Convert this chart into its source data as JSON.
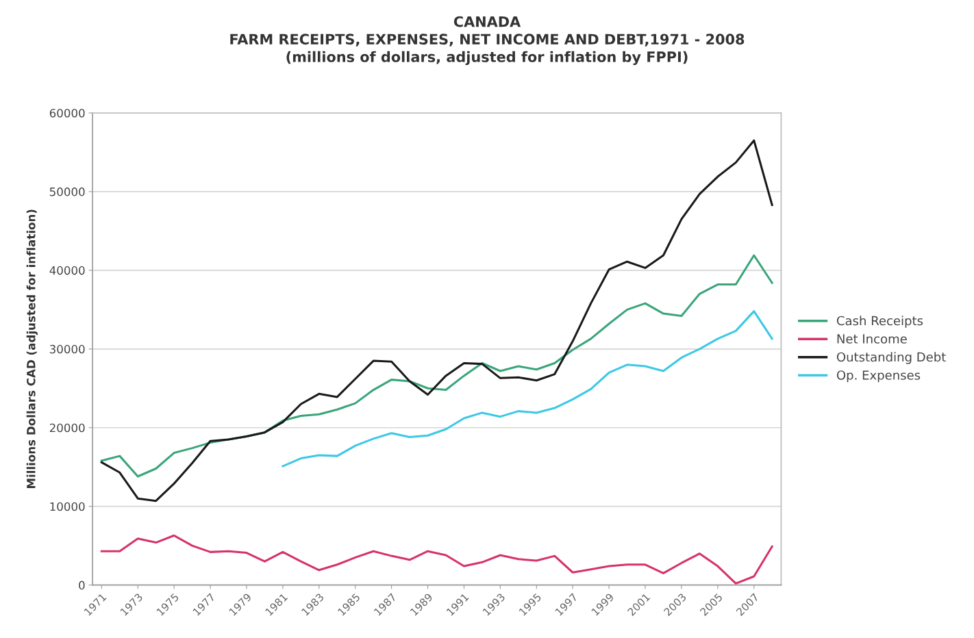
{
  "chart_data": {
    "type": "line",
    "title": "CANADA\nFARM RECEIPTS, EXPENSES, NET INCOME AND DEBT,1971 - 2008\n(millions of dollars, adjusted for inflation by FPPI)",
    "ylabel": "Millions Dollars CAD (adjusted for inflation)",
    "categories": [
      "1971",
      null,
      "1973",
      null,
      "1975",
      null,
      "1977",
      null,
      "1979",
      null,
      "1981",
      null,
      "1983",
      null,
      "1985",
      null,
      "1987",
      null,
      "1989",
      null,
      "1991",
      null,
      "1993",
      null,
      "1995",
      null,
      "1997",
      null,
      "1999",
      null,
      "2001",
      null,
      "2003",
      null,
      "2005",
      null,
      "2007",
      null
    ],
    "series": [
      {
        "name": "Cash Receipts",
        "color": "#3aa57a",
        "values": [
          15800,
          16400,
          13800,
          14800,
          16800,
          17400,
          18100,
          18500,
          18900,
          19400,
          20900,
          21500,
          21700,
          22300,
          23100,
          24800,
          26100,
          25900,
          25000,
          24800,
          26600,
          28200,
          27200,
          27800,
          27400,
          28200,
          29900,
          31300,
          33200,
          35000,
          35800,
          34500,
          34200,
          37000,
          38200,
          38200,
          41900,
          38400
        ]
      },
      {
        "name": "Net Income",
        "color": "#d6336c",
        "values": [
          4300,
          4300,
          5900,
          5400,
          6300,
          5000,
          4200,
          4300,
          4100,
          3000,
          4200,
          3000,
          1900,
          2600,
          3500,
          4300,
          3700,
          3200,
          4300,
          3800,
          2400,
          2900,
          3800,
          3300,
          3100,
          3700,
          1600,
          2000,
          2400,
          2600,
          2600,
          1500,
          2800,
          4000,
          2400,
          200,
          1100,
          4900
        ]
      },
      {
        "name": "Outstanding Debt",
        "color": "#1a1a1a",
        "values": [
          15600,
          14300,
          11000,
          10700,
          12900,
          15500,
          18300,
          18500,
          18900,
          19400,
          20700,
          23000,
          24300,
          23900,
          26200,
          28500,
          28400,
          25900,
          24200,
          26600,
          28200,
          28100,
          26300,
          26400,
          26000,
          26800,
          31000,
          35800,
          40100,
          41100,
          40300,
          41900,
          46500,
          49700,
          51900,
          53700,
          56500,
          48300
        ]
      },
      {
        "name": "Op. Expenses",
        "color": "#3cc8e6",
        "values": [
          null,
          null,
          null,
          null,
          null,
          null,
          null,
          null,
          null,
          null,
          15100,
          16100,
          16500,
          16400,
          17700,
          18600,
          19300,
          18800,
          19000,
          19800,
          21200,
          21900,
          21400,
          22100,
          21900,
          22500,
          23600,
          24900,
          27000,
          28000,
          27800,
          27200,
          28900,
          30000,
          31300,
          32300,
          34800,
          31300
        ]
      }
    ],
    "ylim": [
      0,
      60000
    ],
    "yticks": [
      0,
      10000,
      20000,
      30000,
      40000,
      50000,
      60000
    ],
    "grid": "y",
    "legend": "right",
    "line_style": "solid",
    "marker": "none"
  }
}
